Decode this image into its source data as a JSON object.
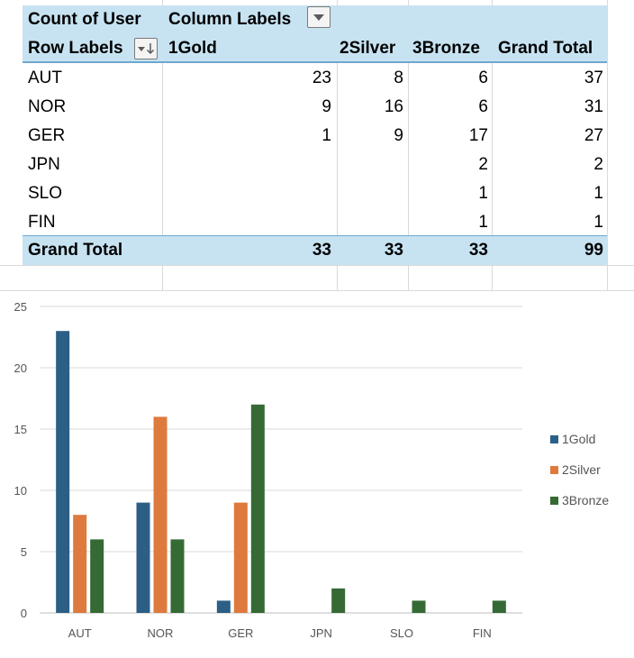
{
  "pivot": {
    "title_count": "Count of User",
    "title_column_labels": "Column Labels",
    "row_labels_header": "Row Labels",
    "columns": [
      "1Gold",
      "2Silver",
      "3Bronze",
      "Grand Total"
    ],
    "rows": [
      {
        "label": "AUT",
        "values": [
          "23",
          "8",
          "6",
          "37"
        ]
      },
      {
        "label": "NOR",
        "values": [
          "9",
          "16",
          "6",
          "31"
        ]
      },
      {
        "label": "GER",
        "values": [
          "1",
          "9",
          "17",
          "27"
        ]
      },
      {
        "label": "JPN",
        "values": [
          "",
          "",
          "2",
          "2"
        ]
      },
      {
        "label": "SLO",
        "values": [
          "",
          "",
          "1",
          "1"
        ]
      },
      {
        "label": "FIN",
        "values": [
          "",
          "",
          "1",
          "1"
        ]
      }
    ],
    "grand_total_label": "Grand Total",
    "grand_total_values": [
      "33",
      "33",
      "33",
      "99"
    ]
  },
  "colors": {
    "header_fill": "#c7e3f2",
    "rule": "#6fa8d0",
    "gold": "#2c5f85",
    "silver": "#de7a3e",
    "bronze": "#356a35"
  },
  "chart_data": {
    "type": "bar",
    "title": "",
    "xlabel": "",
    "ylabel": "",
    "categories": [
      "AUT",
      "NOR",
      "GER",
      "JPN",
      "SLO",
      "FIN"
    ],
    "series": [
      {
        "name": "1Gold",
        "values": [
          23,
          9,
          1,
          0,
          0,
          0
        ]
      },
      {
        "name": "2Silver",
        "values": [
          8,
          16,
          9,
          0,
          0,
          0
        ]
      },
      {
        "name": "3Bronze",
        "values": [
          6,
          6,
          17,
          2,
          1,
          1
        ]
      }
    ],
    "ylim": [
      0,
      25
    ],
    "yticks": [
      "0",
      "5",
      "10",
      "15",
      "20",
      "25"
    ],
    "grid": true,
    "legend": "right"
  }
}
